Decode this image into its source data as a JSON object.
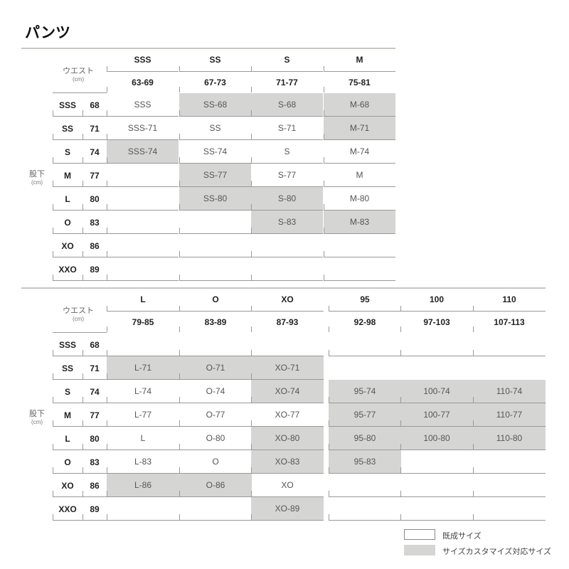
{
  "title": "パンツ",
  "waist_label": "ウエスト",
  "inseam_label": "股下",
  "unit": "(cm)",
  "rows": [
    {
      "size": "SSS",
      "len": "68"
    },
    {
      "size": "SS",
      "len": "71"
    },
    {
      "size": "S",
      "len": "74"
    },
    {
      "size": "M",
      "len": "77"
    },
    {
      "size": "L",
      "len": "80"
    },
    {
      "size": "O",
      "len": "83"
    },
    {
      "size": "XO",
      "len": "86"
    },
    {
      "size": "XXO",
      "len": "89"
    }
  ],
  "table1": {
    "columns": [
      {
        "size": "SSS",
        "range": "63-69"
      },
      {
        "size": "SS",
        "range": "67-73"
      },
      {
        "size": "S",
        "range": "71-77"
      },
      {
        "size": "M",
        "range": "75-81"
      }
    ],
    "cells": [
      [
        {
          "t": "SSS"
        },
        {
          "t": "SS-68",
          "s": 1
        },
        {
          "t": "S-68",
          "s": 1
        },
        {
          "t": "M-68",
          "s": 1
        }
      ],
      [
        {
          "t": "SSS-71"
        },
        {
          "t": "SS"
        },
        {
          "t": "S-71"
        },
        {
          "t": "M-71",
          "s": 1
        }
      ],
      [
        {
          "t": "SSS-74",
          "s": 1
        },
        {
          "t": "SS-74"
        },
        {
          "t": "S"
        },
        {
          "t": "M-74"
        }
      ],
      [
        {
          "t": ""
        },
        {
          "t": "SS-77",
          "s": 1
        },
        {
          "t": "S-77"
        },
        {
          "t": "M"
        }
      ],
      [
        {
          "t": ""
        },
        {
          "t": "SS-80",
          "s": 1
        },
        {
          "t": "S-80",
          "s": 1
        },
        {
          "t": "M-80"
        }
      ],
      [
        {
          "t": ""
        },
        {
          "t": ""
        },
        {
          "t": "S-83",
          "s": 1
        },
        {
          "t": "M-83",
          "s": 1
        }
      ],
      [
        {
          "t": ""
        },
        {
          "t": ""
        },
        {
          "t": ""
        },
        {
          "t": ""
        }
      ],
      [
        {
          "t": ""
        },
        {
          "t": ""
        },
        {
          "t": ""
        },
        {
          "t": ""
        }
      ]
    ]
  },
  "table2": {
    "columns": [
      {
        "size": "L",
        "range": "79-85"
      },
      {
        "size": "O",
        "range": "83-89"
      },
      {
        "size": "XO",
        "range": "87-93"
      },
      {
        "size": "95",
        "range": "92-98"
      },
      {
        "size": "100",
        "range": "97-103"
      },
      {
        "size": "110",
        "range": "107-113"
      }
    ],
    "cells": [
      [
        {
          "t": ""
        },
        {
          "t": ""
        },
        {
          "t": ""
        },
        {
          "t": ""
        },
        {
          "t": ""
        },
        {
          "t": ""
        }
      ],
      [
        {
          "t": "L-71",
          "s": 1
        },
        {
          "t": "O-71",
          "s": 1
        },
        {
          "t": "XO-71",
          "s": 1
        },
        {
          "t": ""
        },
        {
          "t": ""
        },
        {
          "t": ""
        }
      ],
      [
        {
          "t": "L-74"
        },
        {
          "t": "O-74"
        },
        {
          "t": "XO-74",
          "s": 1
        },
        {
          "t": "95-74",
          "s": 1
        },
        {
          "t": "100-74",
          "s": 1
        },
        {
          "t": "110-74",
          "s": 1
        }
      ],
      [
        {
          "t": "L-77"
        },
        {
          "t": "O-77"
        },
        {
          "t": "XO-77"
        },
        {
          "t": "95-77",
          "s": 1
        },
        {
          "t": "100-77",
          "s": 1
        },
        {
          "t": "110-77",
          "s": 1
        }
      ],
      [
        {
          "t": "L"
        },
        {
          "t": "O-80"
        },
        {
          "t": "XO-80",
          "s": 1
        },
        {
          "t": "95-80",
          "s": 1
        },
        {
          "t": "100-80",
          "s": 1
        },
        {
          "t": "110-80",
          "s": 1
        }
      ],
      [
        {
          "t": "L-83"
        },
        {
          "t": "O"
        },
        {
          "t": "XO-83",
          "s": 1
        },
        {
          "t": "95-83",
          "s": 1
        },
        {
          "t": ""
        },
        {
          "t": ""
        }
      ],
      [
        {
          "t": "L-86",
          "s": 1
        },
        {
          "t": "O-86",
          "s": 1
        },
        {
          "t": "XO"
        },
        {
          "t": ""
        },
        {
          "t": ""
        },
        {
          "t": ""
        }
      ],
      [
        {
          "t": ""
        },
        {
          "t": ""
        },
        {
          "t": "XO-89",
          "s": 1
        },
        {
          "t": ""
        },
        {
          "t": ""
        },
        {
          "t": ""
        }
      ]
    ]
  },
  "legend": {
    "standard": "既成サイズ",
    "custom": "サイズカスタマイズ対応サイズ",
    "shade_color": "#d5d6d4"
  }
}
